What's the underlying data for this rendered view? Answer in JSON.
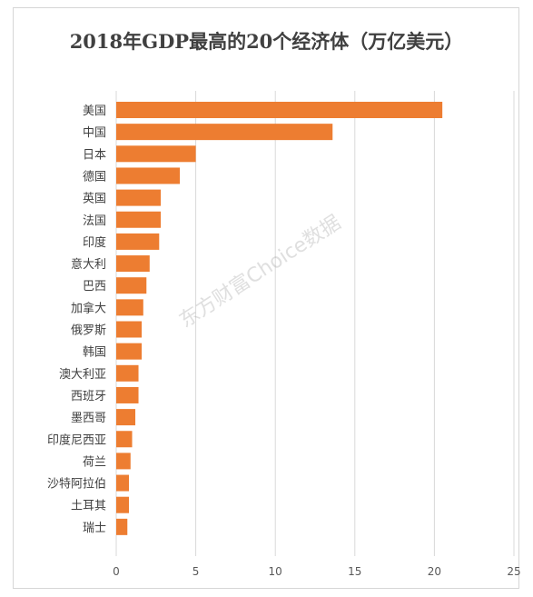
{
  "chart_data": {
    "type": "bar",
    "orientation": "horizontal",
    "title": "2018年GDP最高的20个经济体（万亿美元）",
    "categories": [
      "美国",
      "中国",
      "日本",
      "德国",
      "英国",
      "法国",
      "印度",
      "意大利",
      "巴西",
      "加拿大",
      "俄罗斯",
      "韩国",
      "澳大利亚",
      "西班牙",
      "墨西哥",
      "印度尼西亚",
      "荷兰",
      "沙特阿拉伯",
      "土耳其",
      "瑞士"
    ],
    "values": [
      20.5,
      13.6,
      5.0,
      4.0,
      2.8,
      2.8,
      2.7,
      2.1,
      1.9,
      1.7,
      1.6,
      1.6,
      1.4,
      1.4,
      1.2,
      1.0,
      0.9,
      0.8,
      0.8,
      0.7
    ],
    "xlim": [
      0,
      25
    ],
    "xticks": [
      0,
      5,
      10,
      15,
      20,
      25
    ],
    "grid": true,
    "bar_color": "#ed7d31"
  },
  "watermark": "东方财富Choice数据"
}
